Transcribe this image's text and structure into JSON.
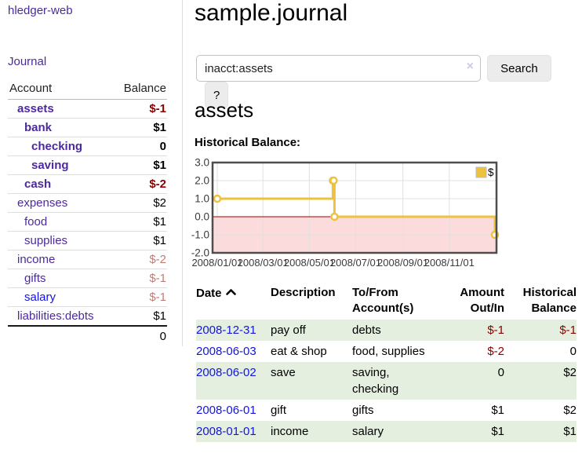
{
  "colors": {
    "link_purple": "#4c2a9d",
    "link_blue": "#1414dd",
    "negative_strong": "#8b0000",
    "negative_muted": "#bd7e78",
    "row_shade_green": "#e4efe0"
  },
  "sidebar": {
    "brand": "hledger-web",
    "nav_journal": "Journal",
    "accounts": {
      "header_account": "Account",
      "header_balance": "Balance",
      "rows": [
        {
          "name": "assets",
          "depth": 1,
          "bold": true,
          "balance": "$-1",
          "balance_style": "negative",
          "link_style": "purple"
        },
        {
          "name": "bank",
          "depth": 2,
          "bold": true,
          "balance": "$1",
          "balance_style": "normal",
          "link_style": "purple"
        },
        {
          "name": "checking",
          "depth": 3,
          "bold": true,
          "balance": "0",
          "balance_style": "normal",
          "link_style": "purple"
        },
        {
          "name": "saving",
          "depth": 3,
          "bold": true,
          "balance": "$1",
          "balance_style": "normal",
          "link_style": "purple"
        },
        {
          "name": "cash",
          "depth": 2,
          "bold": true,
          "balance": "$-2",
          "balance_style": "negative",
          "link_style": "purple"
        },
        {
          "name": "expenses",
          "depth": 1,
          "bold": false,
          "balance": "$2",
          "balance_style": "normal",
          "link_style": "purple"
        },
        {
          "name": "food",
          "depth": 2,
          "bold": false,
          "balance": "$1",
          "balance_style": "normal",
          "link_style": "purple"
        },
        {
          "name": "supplies",
          "depth": 2,
          "bold": false,
          "balance": "$1",
          "balance_style": "normal",
          "link_style": "purple"
        },
        {
          "name": "income",
          "depth": 1,
          "bold": false,
          "balance": "$-2",
          "balance_style": "negative-muted",
          "link_style": "purple"
        },
        {
          "name": "gifts",
          "depth": 2,
          "bold": false,
          "balance": "$-1",
          "balance_style": "negative-muted",
          "link_style": "purple"
        },
        {
          "name": "salary",
          "depth": 2,
          "bold": false,
          "balance": "$-1",
          "balance_style": "negative-muted",
          "link_style": "blue"
        },
        {
          "name": "liabilities:debts",
          "depth": 1,
          "bold": false,
          "balance": "$1",
          "balance_style": "normal",
          "link_style": "purple"
        }
      ],
      "total": "0"
    }
  },
  "header": {
    "title": "sample.journal"
  },
  "search": {
    "value": "inacct:assets",
    "clear_icon": "×",
    "search_button": "Search",
    "help_button": "?"
  },
  "account_page": {
    "heading": "assets",
    "chart_title": "Historical Balance:"
  },
  "chart_data": {
    "type": "line",
    "title": "Historical Balance:",
    "step": true,
    "x_range": [
      "2008-01-01",
      "2008-12-31"
    ],
    "ylim": [
      -2,
      3
    ],
    "y_ticks": [
      3.0,
      2.0,
      1.0,
      0.0,
      -1.0,
      -2.0
    ],
    "x_ticks": [
      "2008/01/01",
      "2008/03/01",
      "2008/05/01",
      "2008/07/01",
      "2008/09/01",
      "2008/11/01"
    ],
    "grid": true,
    "legend_position": "top-right",
    "series": [
      {
        "name": "$",
        "color": "#EDC240",
        "points": [
          [
            "2008-01-01",
            1
          ],
          [
            "2008-06-01",
            2
          ],
          [
            "2008-06-02",
            2
          ],
          [
            "2008-06-03",
            0
          ],
          [
            "2008-12-31",
            -1
          ]
        ]
      }
    ],
    "negative_region_fill": "#fbdbdb",
    "zero_line_color": "#a00000",
    "grid_color": "#e0e0e0",
    "border_color": "#4d4d4d",
    "point_fill": "#ffffff"
  },
  "register": {
    "headers": {
      "date": "Date",
      "description": "Description",
      "account": "To/From Account(s)",
      "amount": "Amount Out/In",
      "balance": "Historical Balance"
    },
    "rows": [
      {
        "date": "2008-12-31",
        "description": "pay off",
        "accounts": "debts",
        "amount": "$-1",
        "balance": "$-1",
        "shaded": true
      },
      {
        "date": "2008-06-03",
        "description": "eat & shop",
        "accounts": "food, supplies",
        "amount": "$-2",
        "balance": "0",
        "shaded": false
      },
      {
        "date": "2008-06-02",
        "description": "save",
        "accounts": "saving, checking",
        "amount": "0",
        "balance": "$2",
        "shaded": true
      },
      {
        "date": "2008-06-01",
        "description": "gift",
        "accounts": "gifts",
        "amount": "$1",
        "balance": "$2",
        "shaded": false
      },
      {
        "date": "2008-01-01",
        "description": "income",
        "accounts": "salary",
        "amount": "$1",
        "balance": "$1",
        "shaded": true
      }
    ]
  }
}
